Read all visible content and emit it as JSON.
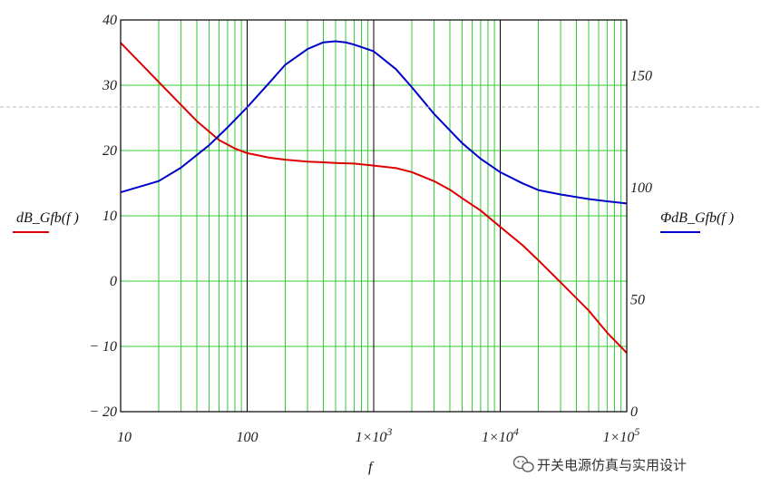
{
  "chart_data": {
    "type": "line",
    "x_scale": "log",
    "xlim": [
      10,
      100000
    ],
    "ylim_left": [
      -20,
      40
    ],
    "ylim_right": [
      0,
      175
    ],
    "x_ticks": [
      10,
      100,
      1000,
      10000,
      100000
    ],
    "x_tick_labels": [
      "10",
      "100",
      "1×10",
      "1×10",
      "1×10"
    ],
    "x_tick_exponents": [
      "",
      "",
      "3",
      "4",
      "5"
    ],
    "y_left_ticks": [
      40,
      30,
      20,
      10,
      0,
      -10,
      -20
    ],
    "y_left_tick_labels": [
      "40",
      "30",
      "20",
      "10",
      "0",
      "− 10",
      "− 20"
    ],
    "y_right_ticks": [
      150,
      100,
      50,
      0
    ],
    "y_right_tick_labels": [
      "150",
      "100",
      "50",
      "0"
    ],
    "xlabel": "f",
    "ylabel_left": "dB_Gfb(f )",
    "ylabel_right": "ΦdB_Gfb(f )",
    "grid": true,
    "grid_color": "#33cc33",
    "decade_line_color": "#000000",
    "series": [
      {
        "name": "dB_Gfb(f )",
        "axis": "left",
        "color": "#dd0000",
        "x": [
          10,
          20,
          40,
          60,
          80,
          100,
          150,
          200,
          300,
          400,
          500,
          700,
          1000,
          1500,
          2000,
          3000,
          4000,
          5000,
          7000,
          10000,
          15000,
          20000,
          30000,
          50000,
          70000,
          100000
        ],
        "y": [
          36.5,
          30.5,
          24.5,
          21.6,
          20.3,
          19.6,
          18.9,
          18.6,
          18.3,
          18.2,
          18.1,
          18.0,
          17.7,
          17.3,
          16.7,
          15.3,
          14.0,
          12.7,
          10.8,
          8.3,
          5.5,
          3.2,
          -0.2,
          -4.5,
          -7.9,
          -11.0
        ]
      },
      {
        "name": "ΦdB_Gfb(f )",
        "axis": "right",
        "color": "#0000cc",
        "x": [
          10,
          20,
          30,
          50,
          70,
          100,
          150,
          200,
          300,
          400,
          500,
          600,
          700,
          1000,
          1500,
          2000,
          3000,
          5000,
          7000,
          10000,
          15000,
          20000,
          30000,
          50000,
          70000,
          100000
        ],
        "y": [
          98,
          103,
          109,
          119,
          127,
          136,
          147,
          155,
          162,
          165,
          165.5,
          165,
          164,
          161,
          153,
          145,
          133,
          120,
          113,
          107,
          102,
          99,
          97,
          95,
          94,
          93
        ]
      }
    ]
  },
  "watermark": {
    "text": "开关电源仿真与实用设计",
    "icon": "wechat-icon"
  }
}
